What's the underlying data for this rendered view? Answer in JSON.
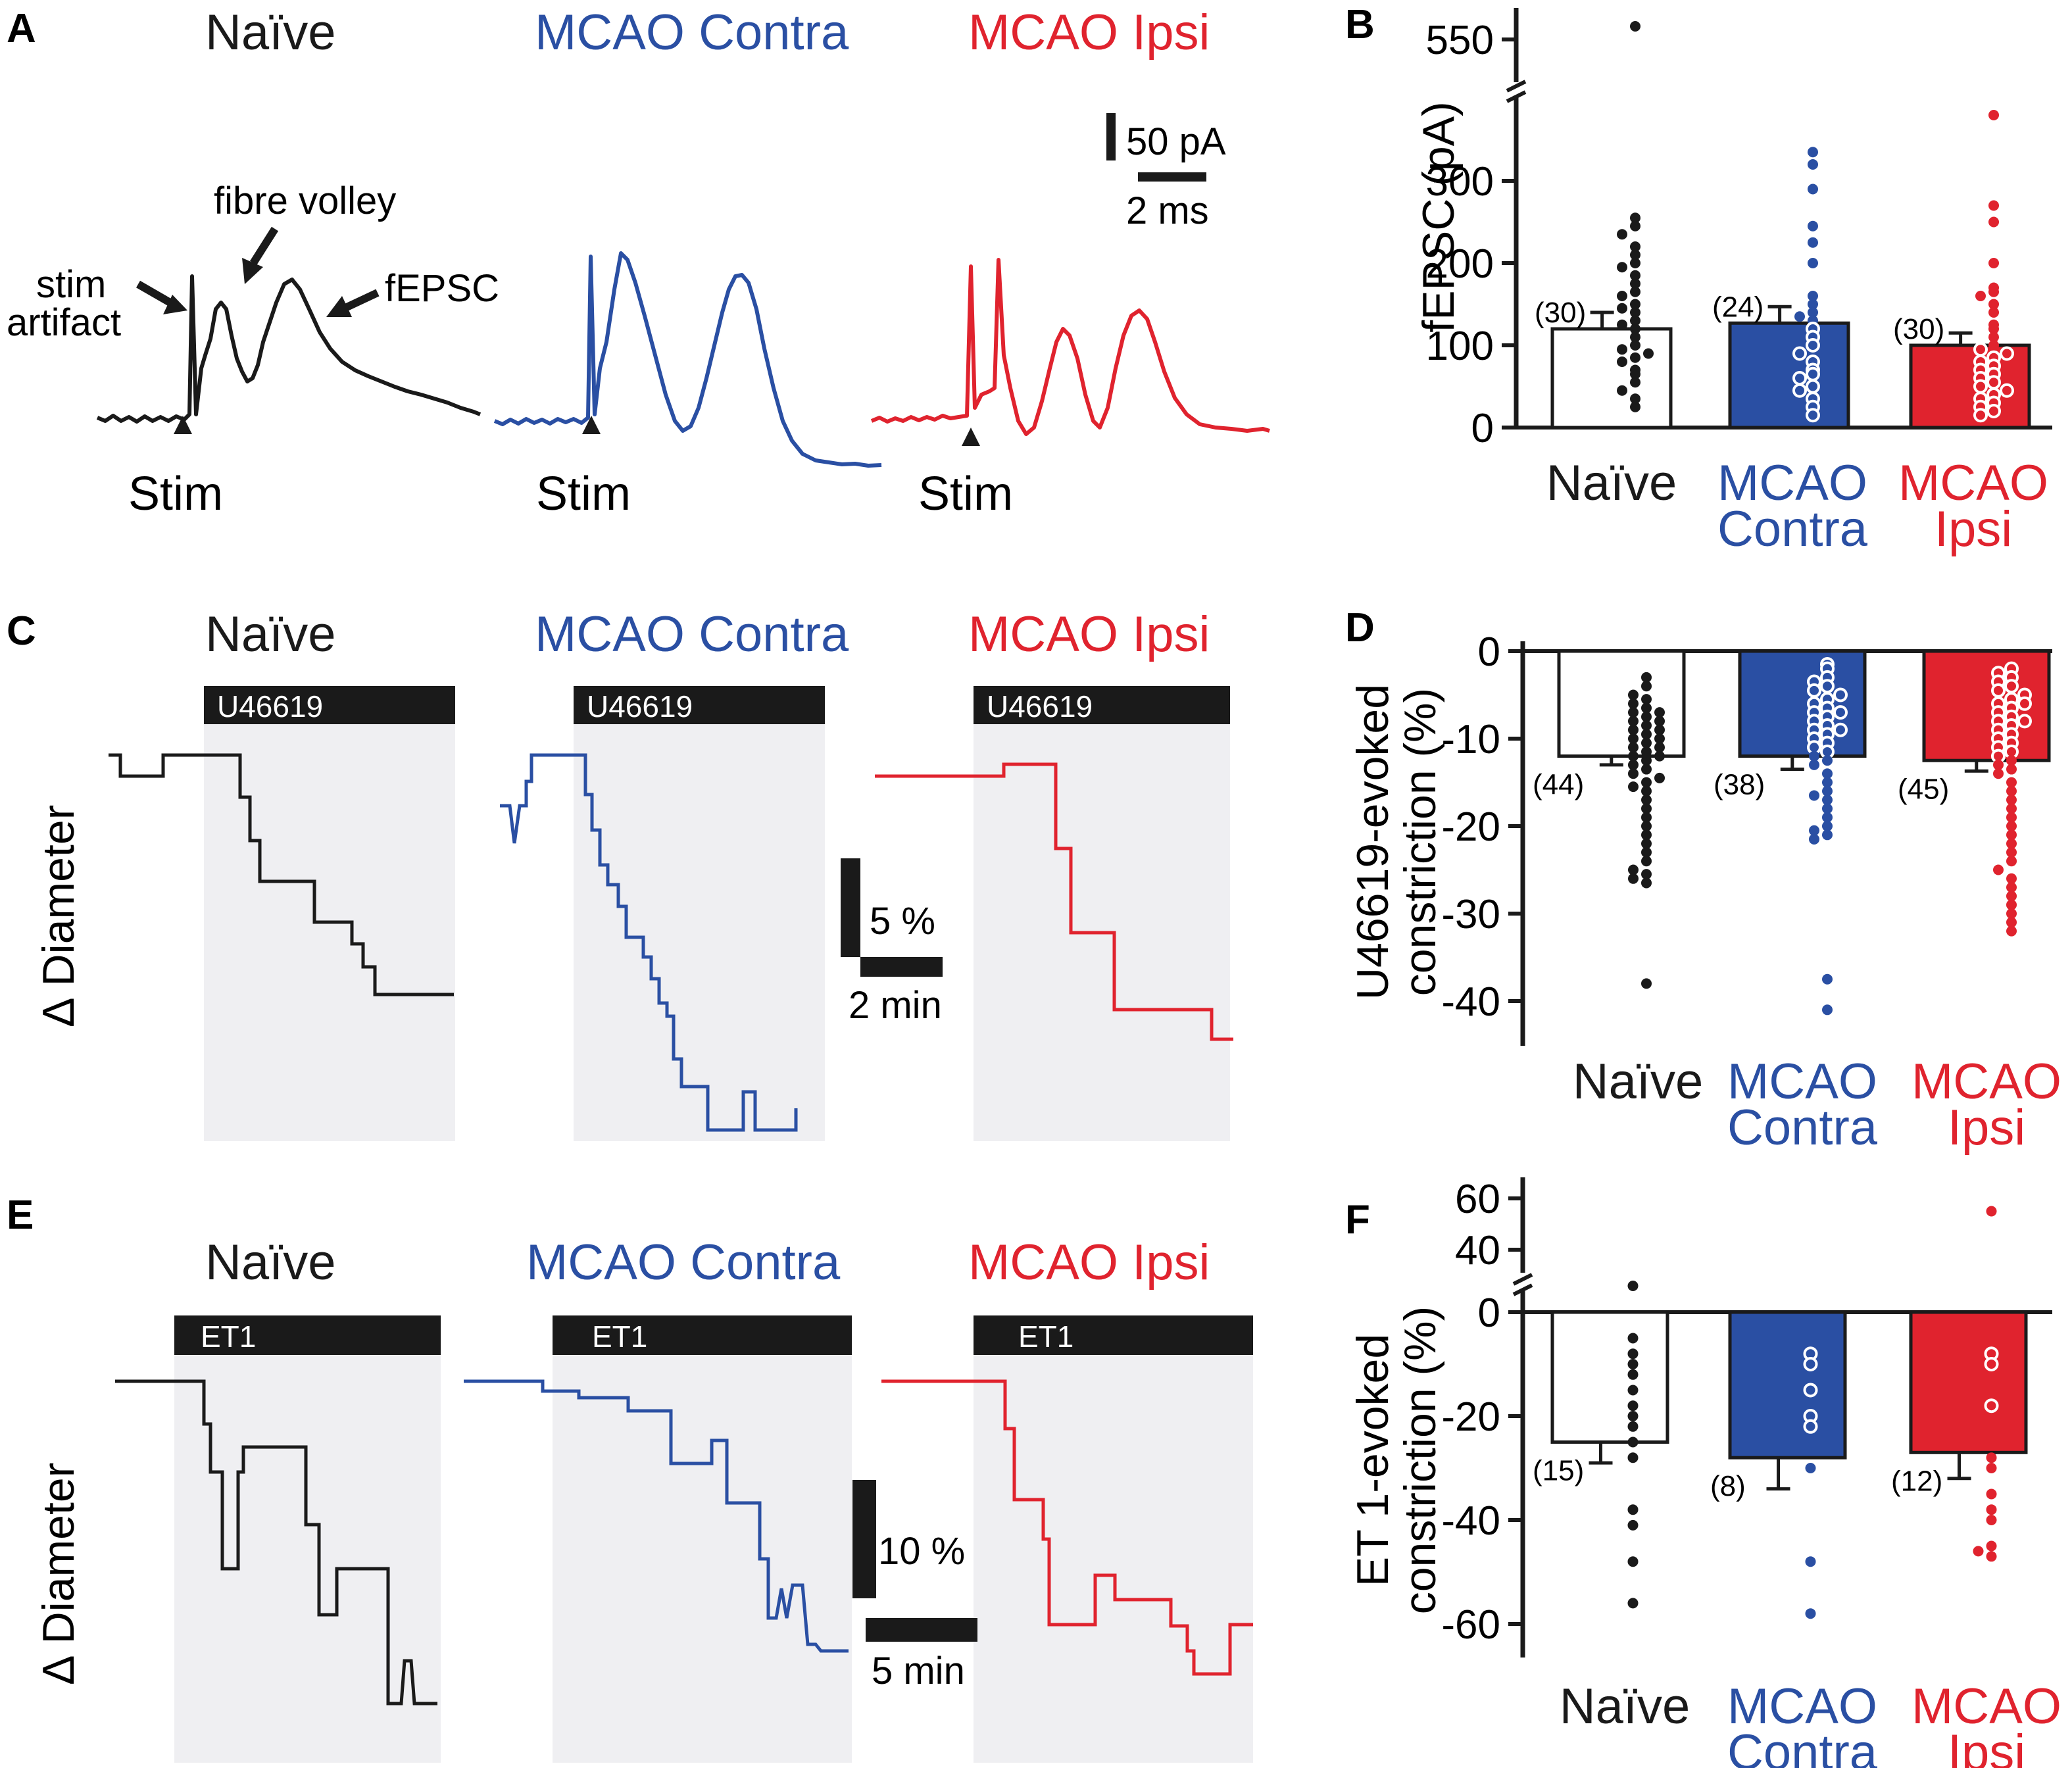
{
  "colors": {
    "naive": "#1a1a1a",
    "contra": "#2a4fa3",
    "ipsi": "#e0232e",
    "shade": "#efeff2",
    "drugbar": "#1a1a1a"
  },
  "panel_letters": [
    "A",
    "B",
    "C",
    "D",
    "E",
    "F"
  ],
  "conditions": {
    "naive": "Naïve",
    "contra": "MCAO Contra",
    "ipsi": "MCAO Ipsi"
  },
  "categories_two_line": {
    "naive": [
      "Naïve"
    ],
    "contra": [
      "MCAO",
      "Contra"
    ],
    "ipsi": [
      "MCAO",
      "Ipsi"
    ]
  },
  "panelA": {
    "annotations": {
      "stim_artifact": [
        "stim",
        "artifact"
      ],
      "fibre_volley": "fibre volley",
      "fepsc": "fEPSC",
      "stim": "Stim"
    },
    "scale": {
      "current": "50 pA",
      "time": "2 ms"
    }
  },
  "panelC": {
    "drug": "U46619",
    "ylabel": "∆ Diameter",
    "scale": {
      "amplitude": "5 %",
      "time": "2 min"
    }
  },
  "panelE": {
    "drug": "ET1",
    "ylabel": "∆ Diameter",
    "scale": {
      "amplitude": "10 %",
      "time": "5 min"
    }
  },
  "chart_data": [
    {
      "panel": "B",
      "type": "bar",
      "ylabel": "fEPSC (pA)",
      "ylim": [
        0,
        380
      ],
      "axis_break": {
        "from": 380,
        "to": 520
      },
      "upper_segment_ticks": [
        550
      ],
      "yticks": [
        0,
        100,
        200,
        300
      ],
      "tick_labels": [
        "0",
        "100",
        "200",
        "300",
        "550"
      ],
      "categories": [
        "Naïve",
        "MCAO Contra",
        "MCAO Ipsi"
      ],
      "values": [
        120,
        127,
        100
      ],
      "errors": [
        20,
        20,
        15
      ],
      "n": [
        "(30)",
        "(24)",
        "(30)"
      ],
      "points": [
        [
          560,
          255,
          245,
          235,
          220,
          210,
          200,
          195,
          185,
          175,
          165,
          160,
          150,
          145,
          140,
          130,
          125,
          120,
          110,
          100,
          95,
          90,
          85,
          80,
          70,
          65,
          55,
          45,
          35,
          25
        ],
        [
          335,
          320,
          290,
          245,
          225,
          200,
          160,
          150,
          140,
          135,
          130,
          120,
          110,
          100,
          90,
          80,
          70,
          65,
          60,
          50,
          45,
          35,
          25,
          15
        ],
        [
          380,
          270,
          250,
          200,
          170,
          165,
          160,
          150,
          140,
          125,
          120,
          110,
          100,
          95,
          90,
          85,
          80,
          75,
          70,
          65,
          60,
          55,
          50,
          45,
          40,
          35,
          30,
          25,
          20,
          15
        ]
      ]
    },
    {
      "panel": "D",
      "type": "bar",
      "ylabel": "U46619-evoked constriction (%)",
      "ylim": [
        -45,
        0
      ],
      "yticks": [
        0,
        -10,
        -20,
        -30,
        -40
      ],
      "tick_labels": [
        "0",
        "-10",
        "-20",
        "-30",
        "-40"
      ],
      "categories": [
        "Naïve",
        "MCAO Contra",
        "MCAO Ipsi"
      ],
      "values": [
        -12,
        -12,
        -12.5
      ],
      "errors": [
        1,
        1.5,
        1.2
      ],
      "n": [
        "(44)",
        "(38)",
        "(45)"
      ],
      "points": [
        [
          -3,
          -4,
          -5,
          -5.5,
          -6,
          -6.5,
          -7,
          -7,
          -7.5,
          -8,
          -8,
          -8.5,
          -9,
          -9,
          -9.5,
          -10,
          -10,
          -10.5,
          -11,
          -11,
          -11.5,
          -12,
          -12,
          -12.5,
          -13,
          -13.5,
          -14,
          -14.5,
          -15,
          -15.5,
          -16,
          -17,
          -18,
          -19,
          -20,
          -21,
          -22,
          -23,
          -24,
          -25,
          -25.5,
          -26,
          -26.5,
          -38
        ],
        [
          -1.5,
          -2,
          -3,
          -3.5,
          -4,
          -4.5,
          -5,
          -5.5,
          -6,
          -6.5,
          -7,
          -7,
          -7.5,
          -8,
          -8.5,
          -9,
          -9,
          -9.5,
          -10,
          -10.5,
          -11,
          -11.5,
          -12,
          -12.5,
          -13,
          -14,
          -15,
          -16,
          -16.5,
          -17,
          -18,
          -19,
          -20,
          -20.5,
          -21,
          -21.5,
          -37.5,
          -41
        ],
        [
          -2,
          -2.5,
          -3,
          -3.5,
          -4,
          -4.5,
          -5,
          -5.5,
          -6,
          -6,
          -6.5,
          -7,
          -7.5,
          -8,
          -8,
          -8.5,
          -9,
          -9.5,
          -10,
          -10.5,
          -11,
          -11.5,
          -12,
          -12.5,
          -13,
          -13.5,
          -14,
          -15,
          -16,
          -17,
          -18,
          -19,
          -20,
          -21,
          -22,
          -23,
          -24,
          -25,
          -26,
          -27,
          -28,
          -29,
          -30,
          -31,
          -32
        ]
      ]
    },
    {
      "panel": "F",
      "type": "bar",
      "ylabel": "ET 1-evoked constriction (%)",
      "ylim": [
        -70,
        0
      ],
      "axis_break": {
        "from": 0,
        "to": 30
      },
      "upper_segment_ticks": [
        40,
        60
      ],
      "yticks": [
        0,
        -20,
        -40,
        -60
      ],
      "tick_labels": [
        "0",
        "-20",
        "-40",
        "-60",
        "40",
        "60"
      ],
      "categories": [
        "Naïve",
        "MCAO Contra",
        "MCAO Ipsi"
      ],
      "values": [
        -25,
        -28,
        -27
      ],
      "errors": [
        4,
        6,
        5
      ],
      "n": [
        "(15)",
        "(8)",
        "(12)"
      ],
      "points": [
        [
          30,
          -5,
          -8,
          -10,
          -12,
          -15,
          -18,
          -20,
          -22,
          -25,
          -28,
          -38,
          -41,
          -48,
          -56
        ],
        [
          -8,
          -10,
          -15,
          -20,
          -22,
          -30,
          -48,
          -58
        ],
        [
          55,
          -8,
          -10,
          -18,
          -28,
          -30,
          -35,
          -38,
          -40,
          -45,
          -46,
          -47
        ]
      ]
    }
  ]
}
